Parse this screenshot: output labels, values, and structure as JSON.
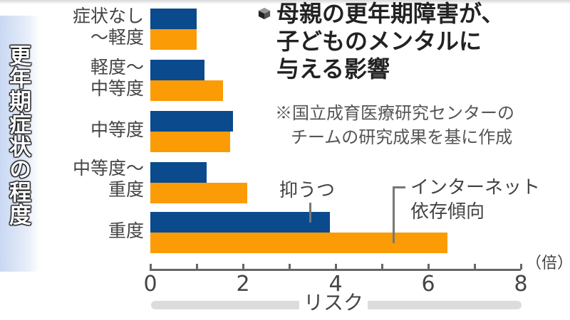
{
  "title": {
    "lines": [
      "母親の更年期障害が、",
      "子どものメンタルに",
      "与える影響"
    ]
  },
  "note": {
    "lines": [
      "※国立成育医療研究センターの",
      "チームの研究成果を基に作成"
    ]
  },
  "ylabel": "更年期症状の程度",
  "categories": [
    {
      "line1": "症状なし",
      "line2": "〜軽度"
    },
    {
      "line1": "軽度〜",
      "line2": "中等度"
    },
    {
      "line1": "中等度",
      "line2": ""
    },
    {
      "line1": "中等度〜",
      "line2": "重度"
    },
    {
      "line1": "重度",
      "line2": ""
    }
  ],
  "legend": {
    "depression": "抑うつ",
    "internet_line1": "インターネット",
    "internet_line2": "依存傾向"
  },
  "axis": {
    "ticks": [
      "0",
      "2",
      "4",
      "6",
      "8"
    ],
    "unit": "（倍）",
    "xlabel": "リスク"
  },
  "colors": {
    "depression": "#0a4a8d",
    "internet": "#fb9b06"
  },
  "chart_data": {
    "type": "bar",
    "orientation": "horizontal",
    "title": "母親の更年期障害が、子どものメンタルに与える影響",
    "subtitle": "※国立成育医療研究センターのチームの研究成果を基に作成",
    "categories": [
      "症状なし〜軽度",
      "軽度〜中等度",
      "中等度",
      "中等度〜重度",
      "重度"
    ],
    "series": [
      {
        "name": "抑うつ",
        "color": "#0a4a8d",
        "values": [
          1.0,
          1.17,
          1.78,
          1.21,
          3.88
        ]
      },
      {
        "name": "インターネット依存傾向",
        "color": "#fb9b06",
        "values": [
          1.0,
          1.57,
          1.72,
          2.09,
          6.42
        ]
      }
    ],
    "xlabel": "リスク（倍）",
    "ylabel": "更年期症状の程度",
    "xlim": [
      0,
      8
    ],
    "xticks": [
      0,
      2,
      4,
      6,
      8
    ],
    "grid": false,
    "legend_position": "inline annotations"
  }
}
